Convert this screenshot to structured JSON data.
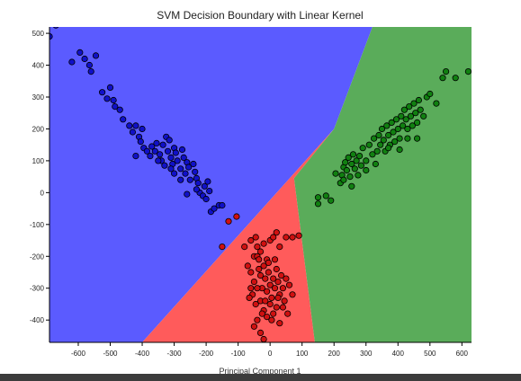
{
  "chart_data": {
    "type": "scatter",
    "title": "SVM Decision Boundary with Linear Kernel",
    "xlabel": "Principal Component 1",
    "ylabel": "",
    "xlim": [
      -690,
      630
    ],
    "ylim": [
      -470,
      520
    ],
    "x_ticks": [
      -600,
      -500,
      -400,
      -300,
      -200,
      -100,
      0,
      100,
      200,
      300,
      400,
      500,
      600
    ],
    "y_ticks": [
      -400,
      -300,
      -200,
      -100,
      0,
      100,
      200,
      300,
      400,
      500
    ],
    "grid": false,
    "legend": "none",
    "regions": [
      {
        "class": "blue",
        "color": "#5b5bff",
        "polygon": [
          [
            -690,
            520
          ],
          [
            -690,
            -470
          ],
          [
            -400,
            -470
          ],
          [
            200,
            200
          ],
          [
            320,
            520
          ]
        ]
      },
      {
        "class": "red",
        "color": "#ff5b5b",
        "polygon": [
          [
            -400,
            -470
          ],
          [
            200,
            200
          ],
          [
            75,
            45
          ],
          [
            140,
            -470
          ]
        ]
      },
      {
        "class": "green",
        "color": "#5aac5a",
        "polygon": [
          [
            320,
            520
          ],
          [
            630,
            520
          ],
          [
            630,
            -470
          ],
          [
            140,
            -470
          ],
          [
            75,
            45
          ],
          [
            200,
            200
          ]
        ]
      }
    ],
    "series": [
      {
        "class": "blue",
        "color": "#1010c8",
        "points": [
          [
            -690,
            490
          ],
          [
            -670,
            525
          ],
          [
            -620,
            410
          ],
          [
            -595,
            440
          ],
          [
            -580,
            420
          ],
          [
            -565,
            400
          ],
          [
            -560,
            380
          ],
          [
            -545,
            430
          ],
          [
            -525,
            315
          ],
          [
            -510,
            295
          ],
          [
            -500,
            330
          ],
          [
            -490,
            290
          ],
          [
            -485,
            270
          ],
          [
            -470,
            260
          ],
          [
            -460,
            230
          ],
          [
            -440,
            210
          ],
          [
            -430,
            190
          ],
          [
            -420,
            210
          ],
          [
            -410,
            175
          ],
          [
            -405,
            160
          ],
          [
            -400,
            200
          ],
          [
            -395,
            140
          ],
          [
            -385,
            130
          ],
          [
            -375,
            115
          ],
          [
            -370,
            145
          ],
          [
            -360,
            130
          ],
          [
            -355,
            155
          ],
          [
            -345,
            120
          ],
          [
            -340,
            100
          ],
          [
            -335,
            150
          ],
          [
            -325,
            175
          ],
          [
            -320,
            130
          ],
          [
            -315,
            165
          ],
          [
            -310,
            110
          ],
          [
            -305,
            90
          ],
          [
            -300,
            140
          ],
          [
            -295,
            125
          ],
          [
            -290,
            100
          ],
          [
            -280,
            75
          ],
          [
            -275,
            135
          ],
          [
            -270,
            110
          ],
          [
            -265,
            60
          ],
          [
            -260,
            95
          ],
          [
            -255,
            80
          ],
          [
            -250,
            40
          ],
          [
            -240,
            90
          ],
          [
            -235,
            65
          ],
          [
            -230,
            45
          ],
          [
            -225,
            30
          ],
          [
            -220,
            0
          ],
          [
            -210,
            -10
          ],
          [
            -205,
            20
          ],
          [
            -200,
            -20
          ],
          [
            -195,
            35
          ],
          [
            -190,
            5
          ],
          [
            -185,
            -60
          ],
          [
            -175,
            -50
          ],
          [
            -160,
            -40
          ],
          [
            -150,
            -40
          ],
          [
            -420,
            115
          ],
          [
            -330,
            85
          ],
          [
            -280,
            40
          ],
          [
            -300,
            60
          ],
          [
            -230,
            10
          ],
          [
            -350,
            100
          ],
          [
            -310,
            75
          ],
          [
            -260,
            -5
          ]
        ]
      },
      {
        "class": "red",
        "color": "#d01010",
        "points": [
          [
            -105,
            -75
          ],
          [
            -130,
            -90
          ],
          [
            -150,
            -170
          ],
          [
            -80,
            -170
          ],
          [
            -60,
            -150
          ],
          [
            -50,
            -200
          ],
          [
            -45,
            -140
          ],
          [
            -40,
            -170
          ],
          [
            -30,
            -185
          ],
          [
            -20,
            -160
          ],
          [
            -10,
            -210
          ],
          [
            0,
            -150
          ],
          [
            10,
            -140
          ],
          [
            20,
            -125
          ],
          [
            30,
            -170
          ],
          [
            50,
            -140
          ],
          [
            70,
            -140
          ],
          [
            90,
            -135
          ],
          [
            -70,
            -230
          ],
          [
            -60,
            -250
          ],
          [
            -50,
            -280
          ],
          [
            -40,
            -200
          ],
          [
            -35,
            -240
          ],
          [
            -30,
            -260
          ],
          [
            -25,
            -300
          ],
          [
            -20,
            -230
          ],
          [
            -15,
            -270
          ],
          [
            -10,
            -310
          ],
          [
            -5,
            -250
          ],
          [
            0,
            -290
          ],
          [
            5,
            -330
          ],
          [
            10,
            -270
          ],
          [
            15,
            -300
          ],
          [
            20,
            -240
          ],
          [
            25,
            -280
          ],
          [
            30,
            -320
          ],
          [
            35,
            -260
          ],
          [
            40,
            -300
          ],
          [
            45,
            -340
          ],
          [
            50,
            -270
          ],
          [
            60,
            -290
          ],
          [
            70,
            -320
          ],
          [
            -55,
            -320
          ],
          [
            -45,
            -350
          ],
          [
            -40,
            -300
          ],
          [
            -30,
            -340
          ],
          [
            -20,
            -370
          ],
          [
            -10,
            -390
          ],
          [
            0,
            -350
          ],
          [
            10,
            -380
          ],
          [
            20,
            -360
          ],
          [
            30,
            -410
          ],
          [
            40,
            -360
          ],
          [
            -50,
            -420
          ],
          [
            -40,
            -400
          ],
          [
            -30,
            -440
          ],
          [
            -20,
            -460
          ],
          [
            -60,
            -300
          ],
          [
            -35,
            -210
          ],
          [
            -5,
            -220
          ],
          [
            15,
            -210
          ],
          [
            25,
            -330
          ],
          [
            -15,
            -340
          ],
          [
            5,
            -400
          ],
          [
            55,
            -380
          ],
          [
            -65,
            -330
          ],
          [
            -25,
            -380
          ]
        ]
      },
      {
        "class": "green",
        "color": "#108010",
        "points": [
          [
            150,
            -35
          ],
          [
            150,
            -15
          ],
          [
            175,
            -10
          ],
          [
            190,
            -25
          ],
          [
            205,
            60
          ],
          [
            220,
            30
          ],
          [
            225,
            55
          ],
          [
            230,
            80
          ],
          [
            235,
            95
          ],
          [
            240,
            70
          ],
          [
            245,
            110
          ],
          [
            250,
            50
          ],
          [
            255,
            90
          ],
          [
            260,
            120
          ],
          [
            265,
            75
          ],
          [
            270,
            100
          ],
          [
            275,
            55
          ],
          [
            280,
            115
          ],
          [
            285,
            85
          ],
          [
            290,
            140
          ],
          [
            300,
            100
          ],
          [
            310,
            150
          ],
          [
            320,
            120
          ],
          [
            325,
            170
          ],
          [
            330,
            90
          ],
          [
            335,
            130
          ],
          [
            340,
            180
          ],
          [
            345,
            150
          ],
          [
            350,
            200
          ],
          [
            355,
            165
          ],
          [
            360,
            130
          ],
          [
            365,
            210
          ],
          [
            370,
            180
          ],
          [
            375,
            150
          ],
          [
            380,
            220
          ],
          [
            385,
            190
          ],
          [
            390,
            160
          ],
          [
            395,
            230
          ],
          [
            400,
            200
          ],
          [
            405,
            170
          ],
          [
            410,
            240
          ],
          [
            415,
            210
          ],
          [
            420,
            260
          ],
          [
            425,
            230
          ],
          [
            430,
            200
          ],
          [
            435,
            270
          ],
          [
            440,
            240
          ],
          [
            445,
            210
          ],
          [
            450,
            280
          ],
          [
            455,
            250
          ],
          [
            460,
            220
          ],
          [
            465,
            290
          ],
          [
            470,
            260
          ],
          [
            480,
            240
          ],
          [
            490,
            300
          ],
          [
            500,
            310
          ],
          [
            520,
            280
          ],
          [
            540,
            360
          ],
          [
            550,
            380
          ],
          [
            580,
            360
          ],
          [
            620,
            380
          ],
          [
            230,
            40
          ],
          [
            255,
            20
          ],
          [
            300,
            70
          ],
          [
            370,
            140
          ],
          [
            405,
            135
          ],
          [
            430,
            170
          ],
          [
            460,
            170
          ]
        ]
      }
    ]
  }
}
